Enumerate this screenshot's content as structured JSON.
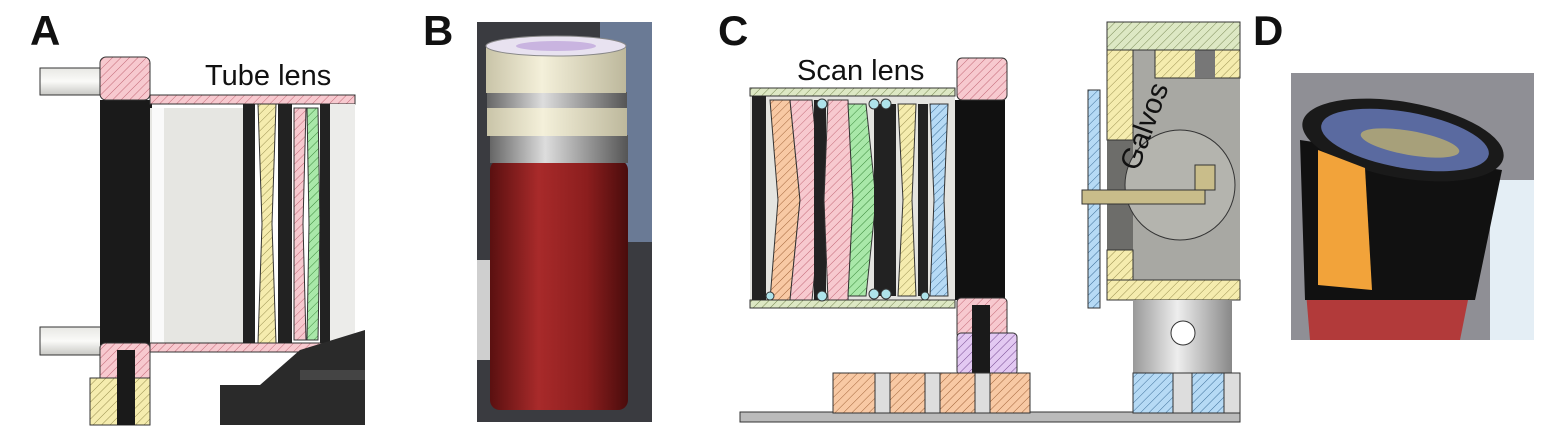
{
  "panels": [
    {
      "label": "A",
      "annotations": [
        "Tube lens"
      ]
    },
    {
      "label": "B"
    },
    {
      "label": "C",
      "annotations": [
        "Scan lens",
        "Galvos"
      ]
    },
    {
      "label": "D"
    }
  ]
}
